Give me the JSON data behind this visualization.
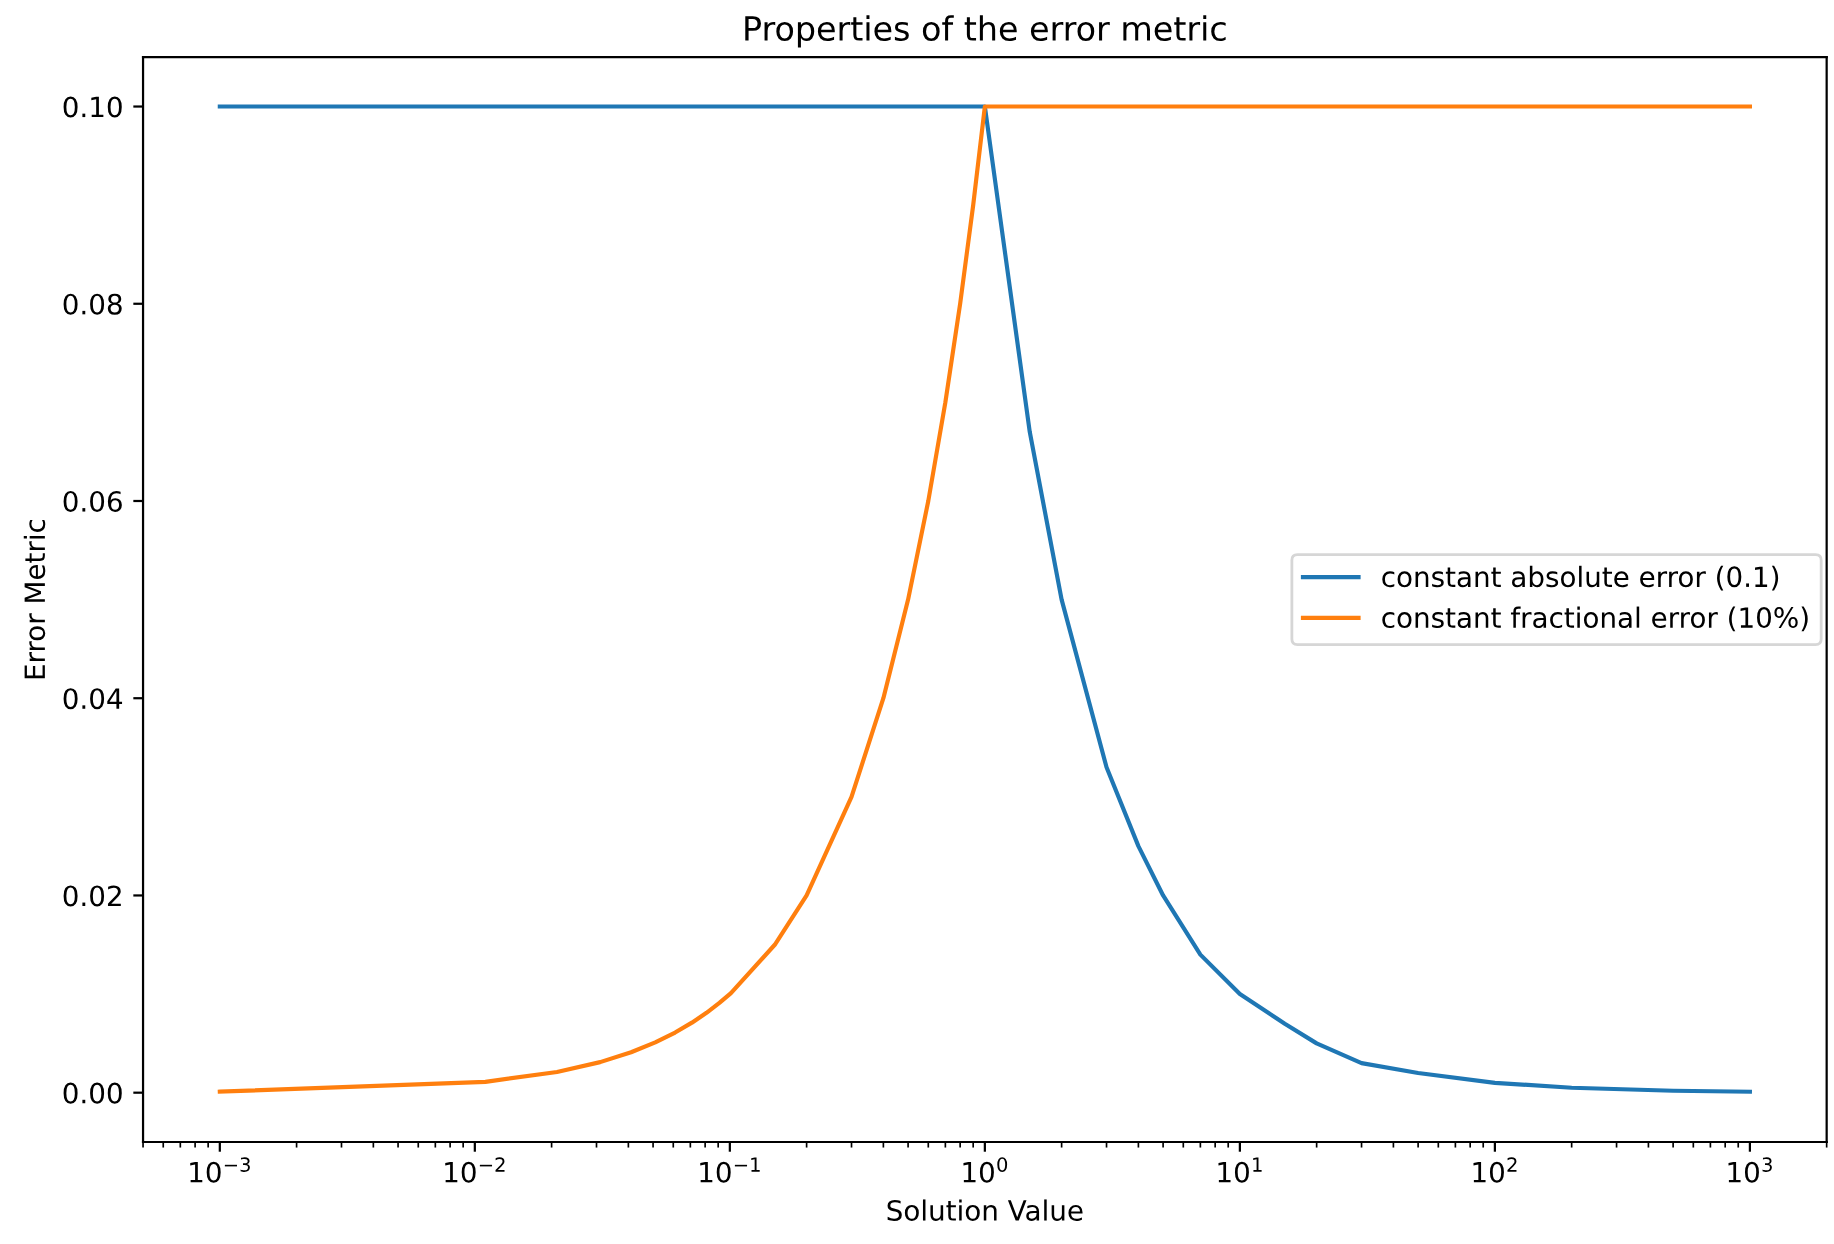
{
  "chart_data": {
    "type": "line",
    "title": "Properties of the error metric",
    "xlabel": "Solution Value",
    "ylabel": "Error Metric",
    "log": "x",
    "xlim": [
      0.0005,
      2000
    ],
    "ylim": [
      -0.005,
      0.105
    ],
    "xticks": [
      {
        "value": 0.001,
        "label": "10$^{−3}$"
      },
      {
        "value": 0.01,
        "label": "10$^{−2}$"
      },
      {
        "value": 0.1,
        "label": "10$^{−1}$"
      },
      {
        "value": 1,
        "label": "10$^{0}$"
      },
      {
        "value": 10,
        "label": "10$^{1}$"
      },
      {
        "value": 100,
        "label": "10$^{2}$"
      },
      {
        "value": 1000,
        "label": "10$^{3}$"
      }
    ],
    "yticks": [
      {
        "value": 0,
        "label": "0.00"
      },
      {
        "value": 0.02,
        "label": "0.02"
      },
      {
        "value": 0.04,
        "label": "0.04"
      },
      {
        "value": 0.06,
        "label": "0.06"
      },
      {
        "value": 0.08,
        "label": "0.08"
      },
      {
        "value": 0.1,
        "label": "0.10"
      }
    ],
    "grid": false,
    "legend": "right",
    "line_style": "solid",
    "marker": "none",
    "series": [
      {
        "name": "constant absolute error (0.1)",
        "color": "#1f77b4",
        "x": [
          0.001,
          1,
          1.5,
          2,
          3,
          4,
          5,
          7,
          10,
          15,
          20,
          30,
          50,
          100,
          200,
          500,
          1000
        ],
        "values": [
          0.1,
          0.1,
          0.067,
          0.05,
          0.033,
          0.025,
          0.02,
          0.014,
          0.01,
          0.007,
          0.005,
          0.003,
          0.002,
          0.001,
          0.0005,
          0.0002,
          0.0001
        ]
      },
      {
        "name": "constant fractional error (10%)",
        "color": "#ff7f0e",
        "x": [
          0.001,
          0.011,
          0.021,
          0.031,
          0.041,
          0.051,
          0.061,
          0.071,
          0.081,
          0.091,
          0.101,
          0.15,
          0.2,
          0.3,
          0.4,
          0.5,
          0.6,
          0.7,
          0.8,
          0.9,
          1,
          1000
        ],
        "values": [
          0.0001,
          0.0011,
          0.0021,
          0.0031,
          0.0041,
          0.0051,
          0.0061,
          0.0071,
          0.0081,
          0.0091,
          0.0101,
          0.015,
          0.02,
          0.03,
          0.04,
          0.05,
          0.06,
          0.07,
          0.08,
          0.09,
          0.1,
          0.1
        ]
      }
    ]
  }
}
